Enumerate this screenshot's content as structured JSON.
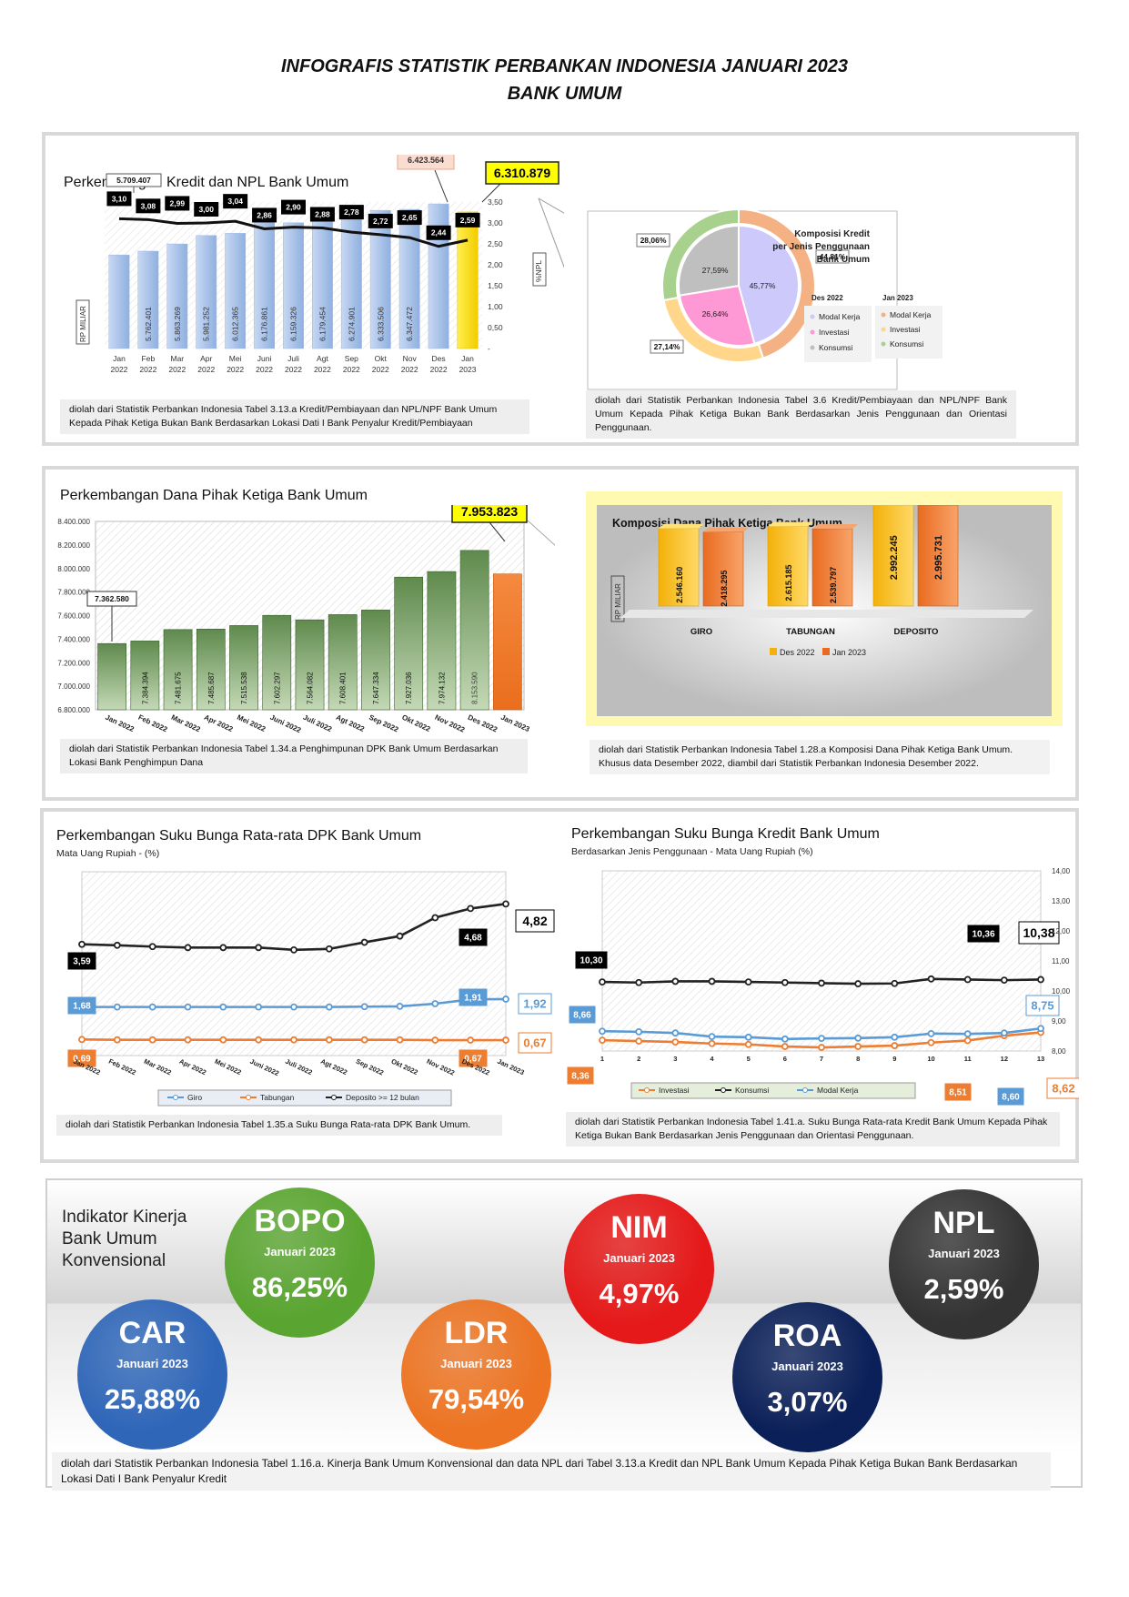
{
  "header": {
    "line1": "INFOGRAFIS STATISTIK PERBANKAN INDONESIA JANUARI 2023",
    "line2": "BANK UMUM"
  },
  "panel1": {
    "left": {
      "title": "Perkembangan Kredit dan NPL Bank Umum",
      "ylabel": "RP MILIAR",
      "y2label": "%NPL",
      "callout_first": "5.709.407",
      "callout_dec": "6.423.564",
      "callout_last": "6.310.879",
      "note": "diolah dari Statistik Perbankan Indonesia Tabel 3.13.a Kredit/Pembiayaan dan NPL/NPF Bank Umum Kepada Pihak Ketiga Bukan Bank Berdasarkan Lokasi Dati I Bank Penyalur Kredit/Pembiayaan"
    },
    "right": {
      "title_l1": "Komposisi Kredit",
      "title_l2": "per Jenis Penggunaan",
      "title_l3": "Bank Umum",
      "legend_dec": "Des 2022",
      "legend_jan": "Jan 2023",
      "note": "diolah dari Statistik Perbankan Indonesia Tabel 3.6 Kredit/Pembiayaan dan NPL/NPF Bank Umum Kepada Pihak Ketiga Bukan Bank Berdasarkan Jenis Penggunaan dan Orientasi Penggunaan."
    }
  },
  "panel2": {
    "left": {
      "title": "Perkembangan Dana Pihak Ketiga Bank Umum",
      "callout_first": "7.362.580",
      "callout_last": "7.953.823",
      "note": "diolah dari Statistik Perbankan Indonesia Tabel 1.34.a Penghimpunan DPK Bank Umum Berdasarkan Lokasi Bank Penghimpun Dana"
    },
    "right": {
      "title": "Komposisi Dana Pihak Ketiga Bank Umum",
      "ylabel": "RP MILIAR",
      "legend_dec": "Des 2022",
      "legend_jan": "Jan 2023",
      "note_l1": "diolah dari Statistik Perbankan Indonesia Tabel 1.28.a Komposisi Dana Pihak Ketiga Bank Umum.",
      "note_l2": "Khusus data Desember 2022, diambil dari Statistik Perbankan Indonesia Desember 2022."
    }
  },
  "panel3": {
    "left": {
      "title": "Perkembangan Suku Bunga Rata-rata DPK Bank Umum",
      "subtitle": "Mata Uang Rupiah - (%)",
      "note": "diolah dari Statistik Perbankan Indonesia Tabel 1.35.a Suku Bunga Rata-rata DPK Bank Umum."
    },
    "right": {
      "title": "Perkembangan Suku Bunga Kredit Bank Umum",
      "subtitle": "Berdasarkan Jenis Penggunaan - Mata Uang Rupiah (%)",
      "note": "diolah dari Statistik Perbankan Indonesia Tabel 1.41.a. Suku Bunga Rata-rata Kredit Bank Umum Kepada Pihak Ketiga Bukan Bank Berdasarkan Jenis Penggunaan dan Orientasi Penggunaan."
    }
  },
  "kpi": {
    "heading_l1": "Indikator Kinerja",
    "heading_l2": "Bank Umum",
    "heading_l3": "Konvensional",
    "period": "Januari 2023",
    "items": [
      {
        "name": "BOPO",
        "value": "86,25%",
        "color": "#5aa531"
      },
      {
        "name": "NIM",
        "value": "4,97%",
        "color": "#e51919"
      },
      {
        "name": "NPL",
        "value": "2,59%",
        "color": "#333333"
      },
      {
        "name": "CAR",
        "value": "25,88%",
        "color": "#2f66b8"
      },
      {
        "name": "LDR",
        "value": "79,54%",
        "color": "#ec7423"
      },
      {
        "name": "ROA",
        "value": "3,07%",
        "color": "#0b2058"
      }
    ],
    "note": "diolah dari Statistik Perbankan Indonesia Tabel 1.16.a. Kinerja Bank Umum Konvensional dan data NPL dari Tabel 3.13.a Kredit dan NPL Bank Umum Kepada Pihak Ketiga Bukan Bank Berdasarkan Lokasi Dati I Bank Penyalur Kredit"
  },
  "chart_data": [
    {
      "type": "bar",
      "title": "Perkembangan Kredit dan NPL Bank Umum",
      "ylabel": "RP MILIAR",
      "y2label": "%NPL",
      "categories": [
        "Jan 2022",
        "Feb 2022",
        "Mar 2022",
        "Apr 2022",
        "Mei 2022",
        "Juni 2022",
        "Juli 2022",
        "Agt 2022",
        "Sep 2022",
        "Okt 2022",
        "Nov 2022",
        "Des 2022",
        "Jan 2023"
      ],
      "series": [
        {
          "values": [
            5709407,
            5762401,
            5863269,
            5981252,
            6012365,
            6176861,
            6159326,
            6179454,
            6274901,
            6333506,
            6347472,
            6423564,
            6310879
          ],
          "labels": [
            "",
            "5.762.401",
            "5.863.269",
            "5.981.252",
            "6.012.365",
            "6.176.861",
            "6.159.326",
            "6.179.454",
            "6.274.901",
            "6.333.506",
            "6.347.472",
            "",
            ""
          ]
        },
        {
          "name": "%NPL",
          "values": [
            3.1,
            3.08,
            2.99,
            3.0,
            3.04,
            2.86,
            2.9,
            2.88,
            2.78,
            2.72,
            2.65,
            2.44,
            2.59
          ],
          "labels": [
            "3,10",
            "3,08",
            "2,99",
            "3,00",
            "3,04",
            "2,86",
            "2,90",
            "2,88",
            "2,78",
            "2,72",
            "2,65",
            "2,44",
            "2,59"
          ]
        }
      ],
      "y2_ticks": [
        "3,50",
        "3,00",
        "2,50",
        "2,00",
        "1,50",
        "1,00",
        "0,50",
        "-"
      ]
    },
    {
      "type": "pie",
      "title": "Komposisi Kredit per Jenis Penggunaan Bank Umum",
      "categories": [
        "Modal Kerja",
        "Investasi",
        "Konsumsi"
      ],
      "series": [
        {
          "name": "Des 2022",
          "values": [
            45.77,
            26.64,
            27.59
          ],
          "labels": [
            "45,77%",
            "26,64%",
            "27,59%"
          ]
        },
        {
          "name": "Jan 2023",
          "values": [
            44.81,
            27.14,
            28.06
          ],
          "labels": [
            "44,81%",
            "27,14%",
            "28,06%"
          ]
        }
      ]
    },
    {
      "type": "bar",
      "title": "Perkembangan Dana Pihak Ketiga Bank Umum",
      "categories": [
        "Jan 2022",
        "Feb 2022",
        "Mar 2022",
        "Apr 2022",
        "Mei 2022",
        "Juni 2022",
        "Juli 2022",
        "Agt 2022",
        "Sep 2022",
        "Okt 2022",
        "Nov 2022",
        "Des 2022",
        "Jan 2023"
      ],
      "values": [
        7362580,
        7384394,
        7481675,
        7485687,
        7515538,
        7602297,
        7564082,
        7608401,
        7647334,
        7927036,
        7974132,
        8153590,
        7953823
      ],
      "labels": [
        "",
        "7.384.394",
        "7.481.675",
        "7.485.687",
        "7.515.538",
        "7.602.297",
        "7.564.082",
        "7.608.401",
        "7.647.334",
        "7.927.036",
        "7.974.132",
        "8.153.590",
        ""
      ],
      "y_ticks": [
        "8.400.000",
        "8.200.000",
        "8.000.000",
        "7.800.000",
        "7.600.000",
        "7.400.000",
        "7.200.000",
        "7.000.000",
        "6.800.000"
      ],
      "ylim": [
        6800000,
        8400000
      ]
    },
    {
      "type": "bar",
      "title": "Komposisi Dana Pihak Ketiga Bank Umum",
      "ylabel": "RP MILIAR",
      "categories": [
        "GIRO",
        "TABUNGAN",
        "DEPOSITO"
      ],
      "series": [
        {
          "name": "Des 2022",
          "values": [
            2546160,
            2615185,
            2992245
          ],
          "labels": [
            "2.546.160",
            "2.615.185",
            "2.992.245"
          ]
        },
        {
          "name": "Jan 2023",
          "values": [
            2418295,
            2539797,
            2995731
          ],
          "labels": [
            "2.418.295",
            "2.539.797",
            "2.995.731"
          ]
        }
      ]
    },
    {
      "type": "line",
      "title": "Perkembangan Suku Bunga Rata-rata DPK Bank Umum",
      "subtitle": "Mata Uang Rupiah - (%)",
      "categories": [
        "Jan 2022",
        "Feb 2022",
        "Mar 2022",
        "Apr 2022",
        "Mei 2022",
        "Juni 2022",
        "Juli 2022",
        "Agt 2022",
        "Sep 2022",
        "Okt 2022",
        "Nov 2022",
        "Des 2022",
        "Jan 2023"
      ],
      "series": [
        {
          "name": "Giro",
          "values": [
            1.68,
            1.68,
            1.68,
            1.68,
            1.68,
            1.68,
            1.68,
            1.68,
            1.69,
            1.7,
            1.78,
            1.91,
            1.92
          ],
          "labels": [
            "1,68",
            "",
            "",
            "",
            "",
            "",
            "",
            "",
            "",
            "",
            "",
            "1,91",
            "1,92"
          ]
        },
        {
          "name": "Tabungan",
          "values": [
            0.69,
            0.68,
            0.68,
            0.68,
            0.68,
            0.68,
            0.68,
            0.68,
            0.68,
            0.68,
            0.67,
            0.67,
            0.67
          ],
          "labels": [
            "0,69",
            "",
            "",
            "",
            "",
            "",
            "",
            "",
            "",
            "",
            "",
            "0,67",
            "0,67"
          ]
        },
        {
          "name": "Deposito >= 12 bulan",
          "values": [
            3.59,
            3.56,
            3.52,
            3.49,
            3.49,
            3.49,
            3.42,
            3.45,
            3.65,
            3.84,
            4.4,
            4.68,
            4.82
          ],
          "labels": [
            "3,59",
            "",
            "",
            "",
            "",
            "",
            "",
            "",
            "",
            "",
            "",
            "4,68",
            "4,82"
          ]
        }
      ]
    },
    {
      "type": "line",
      "title": "Perkembangan Suku Bunga Kredit Bank Umum",
      "subtitle": "Berdasarkan Jenis Penggunaan - Mata Uang Rupiah (%)",
      "x": [
        1,
        2,
        3,
        4,
        5,
        6,
        7,
        8,
        9,
        10,
        11,
        12,
        13
      ],
      "series": [
        {
          "name": "Investasi",
          "values": [
            8.36,
            8.33,
            8.3,
            8.25,
            8.22,
            8.15,
            8.12,
            8.15,
            8.18,
            8.28,
            8.35,
            8.51,
            8.62
          ],
          "labels": [
            "8,36",
            "",
            "",
            "",
            "",
            "",
            "",
            "",
            "",
            "",
            "",
            "8,51",
            "8,62"
          ]
        },
        {
          "name": "Konsumsi",
          "values": [
            10.3,
            10.28,
            10.32,
            10.32,
            10.3,
            10.28,
            10.26,
            10.24,
            10.25,
            10.4,
            10.38,
            10.36,
            10.38
          ],
          "labels": [
            "10,30",
            "",
            "",
            "",
            "",
            "",
            "",
            "",
            "",
            "",
            "",
            "10,36",
            "10,38"
          ]
        },
        {
          "name": "Modal Kerja",
          "values": [
            8.66,
            8.64,
            8.6,
            8.48,
            8.46,
            8.4,
            8.42,
            8.43,
            8.46,
            8.58,
            8.57,
            8.6,
            8.75
          ],
          "labels": [
            "8,66",
            "",
            "",
            "",
            "",
            "",
            "",
            "",
            "",
            "",
            "",
            "8,60",
            "8,75"
          ]
        }
      ],
      "y_ticks": [
        "14,00",
        "13,00",
        "12,00",
        "11,00",
        "10,00",
        "9,00",
        "8,00"
      ],
      "ylim": [
        8,
        14
      ]
    }
  ]
}
